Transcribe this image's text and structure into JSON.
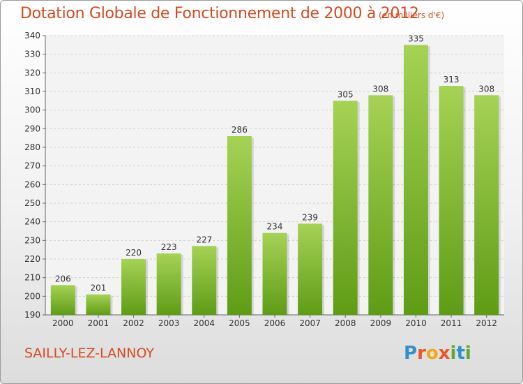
{
  "header": {
    "title": "Dotation Globale de Fonctionnement de 2000 à 2012",
    "unit": "(en milliers d'€)"
  },
  "footer": {
    "commune": "SAILLY-LEZ-LANNOY",
    "brand": "Proxiti",
    "brand_letters": [
      {
        "char": "P",
        "color": "#2f8fd0"
      },
      {
        "char": "r",
        "color": "#e8562a"
      },
      {
        "char": "o",
        "color": "#f2a71b"
      },
      {
        "char": "x",
        "color": "#e8562a"
      },
      {
        "char": "i",
        "color": "#5aab2e"
      },
      {
        "char": "t",
        "color": "#2f8fd0"
      },
      {
        "char": "i",
        "color": "#5aab2e"
      }
    ]
  },
  "colors": {
    "title": "#d64a21",
    "bar_light": "#a6d255",
    "bar_dark": "#5f9c16",
    "grid": "#cfcfcf",
    "axis": "#666666"
  },
  "chart_data": {
    "type": "bar",
    "categories": [
      "2000",
      "2001",
      "2002",
      "2003",
      "2004",
      "2005",
      "2006",
      "2007",
      "2008",
      "2009",
      "2010",
      "2011",
      "2012"
    ],
    "values": [
      206,
      201,
      220,
      223,
      227,
      286,
      234,
      239,
      305,
      308,
      335,
      313,
      308
    ],
    "title": "Dotation Globale de Fonctionnement de 2000 à 2012",
    "subtitle": "(en milliers d'€)",
    "ylim": [
      190,
      340
    ],
    "yticks": [
      190,
      200,
      210,
      220,
      230,
      240,
      250,
      260,
      270,
      280,
      290,
      300,
      310,
      320,
      330,
      340
    ],
    "grid": true,
    "data_labels": true
  }
}
